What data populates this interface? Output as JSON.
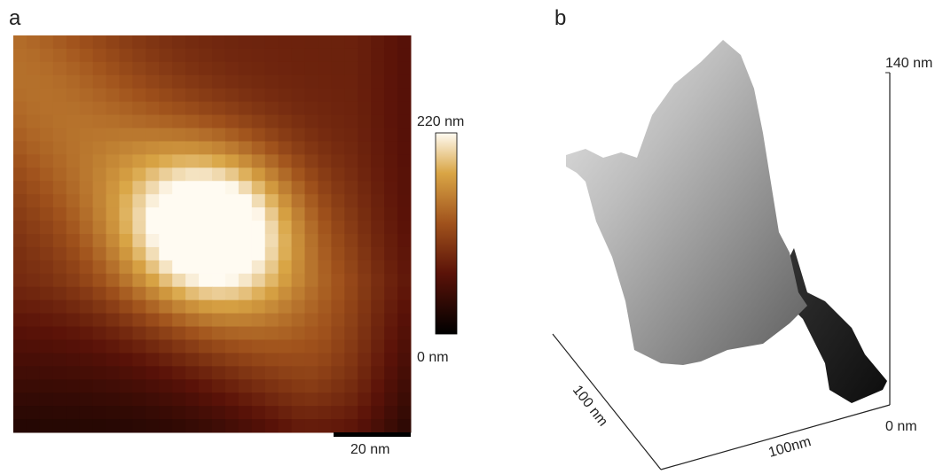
{
  "panel_a": {
    "label": "a",
    "colorbar": {
      "max_label": "220 nm",
      "min_label": "0 nm"
    },
    "scale_bar": "20 nm"
  },
  "panel_b": {
    "label": "b",
    "z_top": "140 nm",
    "z_bottom": "0 nm",
    "x_axis": "100 nm",
    "y_axis": "100nm"
  }
}
